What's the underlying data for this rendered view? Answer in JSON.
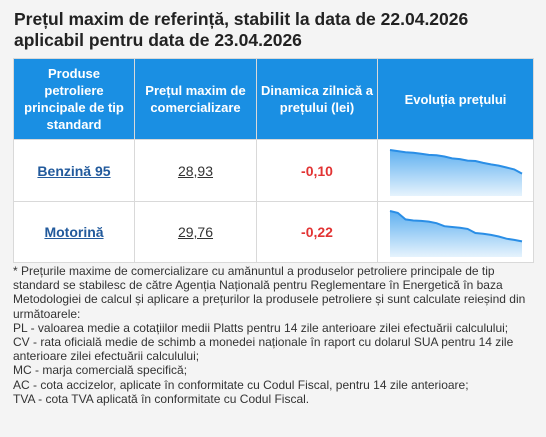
{
  "header": {
    "title_line1": "Prețul maxim de referință, stabilit la data de 22.04.2026",
    "title_line2": "aplicabil pentru data de 23.04.2026"
  },
  "table": {
    "columns": [
      "Produse petroliere principale de tip standard",
      "Prețul maxim de comercializare",
      "Dinamica zilnică a prețului (lei)",
      "Evoluția prețului"
    ],
    "rows": [
      {
        "product": "Benzină 95",
        "price": "28,93",
        "change": "-0,10",
        "trend": [
          1.0,
          0.97,
          0.94,
          0.93,
          0.9,
          0.87,
          0.86,
          0.83,
          0.78,
          0.76,
          0.72,
          0.71,
          0.66,
          0.62,
          0.59,
          0.54,
          0.49,
          0.38
        ]
      },
      {
        "product": "Motorină",
        "price": "29,76",
        "change": "-0,22",
        "trend": [
          1.0,
          0.95,
          0.78,
          0.75,
          0.74,
          0.72,
          0.68,
          0.6,
          0.58,
          0.56,
          0.53,
          0.42,
          0.4,
          0.37,
          0.33,
          0.27,
          0.24,
          0.2
        ]
      }
    ]
  },
  "notes": {
    "line1": "* Prețurile maxime de comercializare cu amănuntul a produselor petroliere principale de tip standard se stabilesc de către Agenția Națională pentru Reglementare în Energetică în baza Metodologiei de calcul și aplicare a prețurilor la produsele petroliere și sunt calculate reieșind din următoarele:",
    "pl": "PL - valoarea medie a cotațiilor medii Platts pentru 14 zile anterioare zilei efectuării calculului;",
    "cv": "CV - rata oficială medie de schimb a monedei naționale în raport cu dolarul SUA pentru 14 zile anterioare zilei efectuării calculului;",
    "mc": "MC - marja comercială specifică;",
    "ac": "AC - cota accizelor, aplicate în conformitate cu Codul Fiscal, pentru 14 zile anterioare;",
    "tva": "TVA - cota TVA aplicată în conformitate cu Codul Fiscal."
  },
  "colors": {
    "header_bg": "#1a8fe3",
    "link": "#225a9c",
    "change": "#e23333",
    "spark_line": "#2a8ee6",
    "spark_fill_top": "#5fb0f0",
    "spark_fill_bottom": "#e6f3fd"
  }
}
